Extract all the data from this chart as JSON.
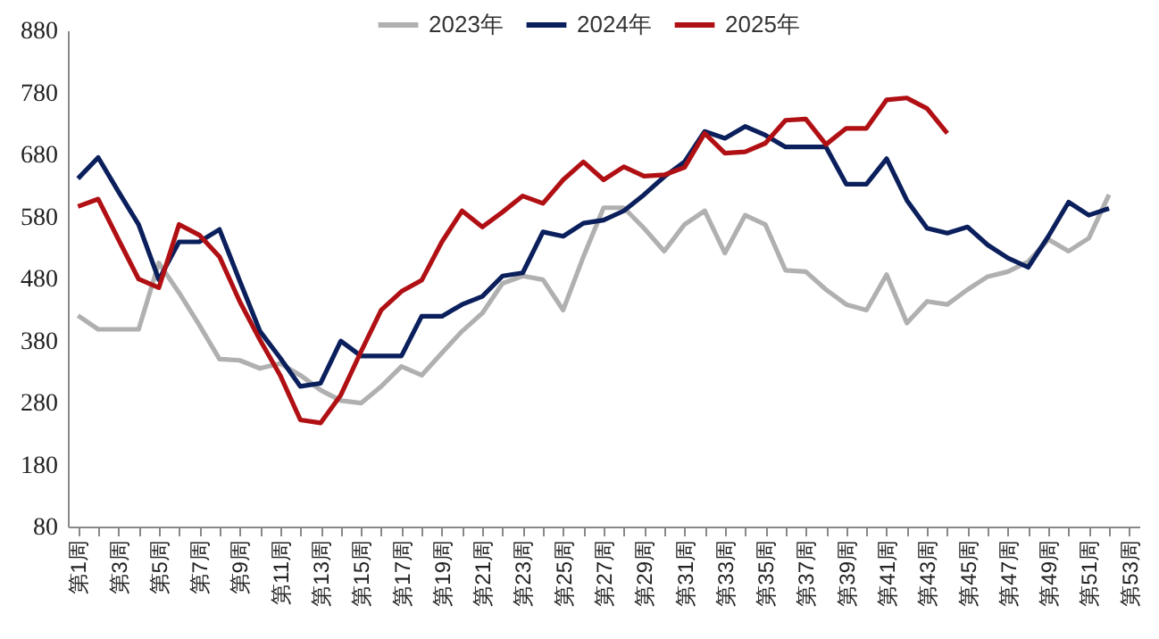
{
  "chart_data": {
    "type": "line",
    "categories": [
      "第1周",
      null,
      "第3周",
      null,
      "第5周",
      null,
      "第7周",
      null,
      "第9周",
      null,
      "第11周",
      null,
      "第13周",
      null,
      "第15周",
      null,
      "第17周",
      null,
      "第19周",
      null,
      "第21周",
      null,
      "第23周",
      null,
      "第25周",
      null,
      "第27周",
      null,
      "第29周",
      null,
      "第31周",
      null,
      "第33周",
      null,
      "第35周",
      null,
      "第37周",
      null,
      "第39周",
      null,
      "第41周",
      null,
      "第43周",
      null,
      "第45周",
      null,
      "第47周",
      null,
      "第49周",
      null,
      "第51周",
      null,
      "第53周"
    ],
    "series": [
      {
        "name": "2023年",
        "color": "#b0b0b0",
        "values": [
          420,
          398,
          398,
          398,
          505,
          457,
          405,
          350,
          348,
          335,
          343,
          324,
          300,
          283,
          279,
          306,
          338,
          324,
          360,
          395,
          424,
          472,
          484,
          478,
          429,
          515,
          594,
          594,
          561,
          524,
          567,
          589,
          521,
          582,
          567,
          493,
          491,
          462,
          438,
          429,
          486,
          408,
          443,
          438,
          462,
          483,
          491,
          507,
          543,
          524,
          545,
          615,
          null
        ]
      },
      {
        "name": "2024年",
        "color": "#0a1f5c",
        "values": [
          641,
          675,
          620,
          567,
          478,
          539,
          539,
          559,
          476,
          395,
          352,
          306,
          311,
          379,
          355,
          355,
          355,
          419,
          419,
          438,
          451,
          484,
          489,
          555,
          548,
          569,
          574,
          589,
          615,
          644,
          668,
          717,
          706,
          725,
          711,
          692,
          692,
          692,
          632,
          632,
          673,
          606,
          561,
          553,
          563,
          534,
          513,
          498,
          548,
          603,
          582,
          593,
          null
        ]
      },
      {
        "name": "2025年",
        "color": "#b01014",
        "values": [
          596,
          608,
          543,
          479,
          465,
          567,
          550,
          515,
          443,
          381,
          324,
          252,
          247,
          292,
          362,
          429,
          459,
          477,
          539,
          589,
          563,
          587,
          613,
          601,
          639,
          668,
          639,
          660,
          645,
          647,
          659,
          714,
          682,
          684,
          698,
          735,
          737,
          696,
          722,
          722,
          768,
          771,
          754,
          714,
          null,
          null,
          null,
          null,
          null,
          null,
          null,
          null,
          null
        ]
      }
    ],
    "ylim": [
      80,
      880
    ],
    "yticks": [
      80,
      180,
      280,
      380,
      480,
      580,
      680,
      780,
      880
    ],
    "legend": "top",
    "grid": false,
    "line_style": "solid",
    "marker": "none"
  }
}
